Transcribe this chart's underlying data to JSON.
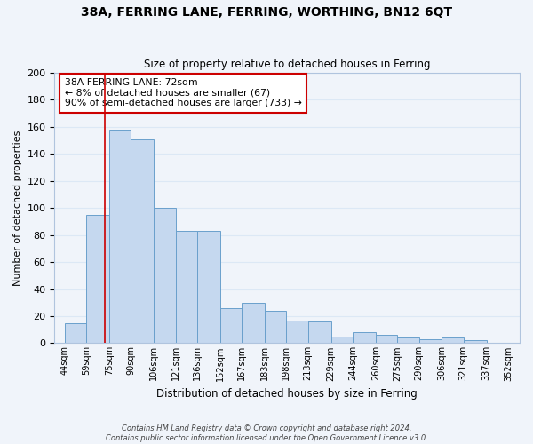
{
  "title": "38A, FERRING LANE, FERRING, WORTHING, BN12 6QT",
  "subtitle": "Size of property relative to detached houses in Ferring",
  "xlabel": "Distribution of detached houses by size in Ferring",
  "ylabel": "Number of detached properties",
  "bar_color": "#c5d8ef",
  "bar_edge_color": "#6aa0cc",
  "bar_left_edges": [
    44,
    59,
    75,
    90,
    106,
    121,
    136,
    152,
    167,
    183,
    198,
    213,
    229,
    244,
    260,
    275,
    290,
    306,
    321,
    337
  ],
  "bar_widths": [
    15,
    16,
    15,
    16,
    15,
    15,
    16,
    15,
    16,
    15,
    15,
    16,
    15,
    16,
    15,
    15,
    16,
    15,
    16,
    15
  ],
  "bar_heights": [
    15,
    95,
    158,
    151,
    100,
    83,
    83,
    26,
    30,
    24,
    17,
    16,
    5,
    8,
    6,
    4,
    3,
    4,
    2,
    0
  ],
  "tick_labels": [
    "44sqm",
    "59sqm",
    "75sqm",
    "90sqm",
    "106sqm",
    "121sqm",
    "136sqm",
    "152sqm",
    "167sqm",
    "183sqm",
    "198sqm",
    "213sqm",
    "229sqm",
    "244sqm",
    "260sqm",
    "275sqm",
    "290sqm",
    "306sqm",
    "321sqm",
    "337sqm",
    "352sqm"
  ],
  "tick_positions": [
    44,
    59,
    75,
    90,
    106,
    121,
    136,
    152,
    167,
    183,
    198,
    213,
    229,
    244,
    260,
    275,
    290,
    306,
    321,
    337,
    352
  ],
  "ylim": [
    0,
    200
  ],
  "yticks": [
    0,
    20,
    40,
    60,
    80,
    100,
    120,
    140,
    160,
    180,
    200
  ],
  "xlim_left": 37,
  "xlim_right": 360,
  "property_line_x": 72,
  "ann_line1": "38A FERRING LANE: 72sqm",
  "ann_line2": "← 8% of detached houses are smaller (67)",
  "ann_line3": "90% of semi-detached houses are larger (733) →",
  "red_line_color": "#cc0000",
  "annotation_border_color": "#cc0000",
  "footnote1": "Contains HM Land Registry data © Crown copyright and database right 2024.",
  "footnote2": "Contains public sector information licensed under the Open Government Licence v3.0.",
  "grid_color": "#dce8f5",
  "background_color": "#f0f4fa"
}
